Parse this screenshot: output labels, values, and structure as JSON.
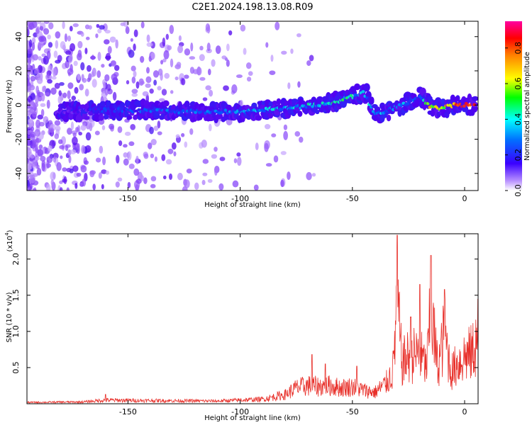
{
  "figure_title": "C2E1.2024.198.13.08.R09",
  "colors": {
    "snr_line": "#e8302a",
    "band_low": "#7a12f0",
    "band_mid": "#00e0e0",
    "band_high": "#e8102a",
    "scatter": "#c9a6f4"
  },
  "chart_data": [
    {
      "type": "heatmap",
      "title": "",
      "xlabel": "Height of straight line (km)",
      "ylabel": "Frequency (Hz)",
      "xlim": [
        -195,
        6
      ],
      "ylim": [
        -50,
        49
      ],
      "xticks": [
        -150,
        -100,
        -50,
        0
      ],
      "xtick_labels": [
        "-150",
        "-100",
        "-50",
        "0"
      ],
      "yticks": [
        -40,
        -20,
        0,
        20,
        40
      ],
      "ytick_labels": [
        "-40",
        "-20",
        "0",
        "20",
        "40"
      ],
      "colorbar": {
        "label": "Normalized spectral amplitude",
        "range": [
          0,
          0.95
        ],
        "ticks": [
          0,
          0.2,
          0.4,
          0.6,
          0.8
        ],
        "tick_labels": [
          "0.0",
          "0.2",
          "0.4",
          "0.6",
          "0.8"
        ]
      },
      "ridge": {
        "description_points_height_km": [
          -180,
          -160,
          -140,
          -120,
          -100,
          -80,
          -60,
          -50,
          -45,
          -40,
          -35,
          -25,
          -20,
          -15,
          -10,
          -5,
          0,
          5
        ],
        "frequency_hz": [
          -4,
          -3,
          -3,
          -4,
          -4,
          -2,
          1,
          5,
          8,
          -6,
          -4,
          2,
          5,
          -1,
          -2,
          0,
          0,
          0
        ],
        "amplitude": [
          0.2,
          0.3,
          0.35,
          0.35,
          0.4,
          0.45,
          0.5,
          0.5,
          0.4,
          0.45,
          0.4,
          0.4,
          0.35,
          0.75,
          0.6,
          0.9,
          0.95,
          0.95
        ]
      }
    },
    {
      "type": "line",
      "title": "",
      "xlabel": "Height of straight line (km)",
      "ylabel": "SNR (10 * v/v)",
      "y_multiplier": "(x10",
      "y_multiplier_exp": "4",
      "y_multiplier_close": ")",
      "xlim": [
        -195,
        6
      ],
      "ylim": [
        0,
        2.35
      ],
      "xticks": [
        -150,
        -100,
        -50,
        0
      ],
      "xtick_labels": [
        "-150",
        "-100",
        "-50",
        "0"
      ],
      "yticks": [
        0.5,
        1.0,
        1.5,
        2.0
      ],
      "ytick_labels": [
        "0.5",
        "1.0",
        "1.5",
        "2.0"
      ],
      "series": [
        {
          "envelope_x": [
            -195,
            -170,
            -160,
            -140,
            -110,
            -90,
            -80,
            -75,
            -70,
            -65,
            -60,
            -55,
            -50,
            -45,
            -40,
            -35,
            -32,
            -30,
            -28,
            -25,
            -20,
            -17,
            -15,
            -12,
            -9,
            -6,
            -3,
            0,
            3,
            6
          ],
          "envelope_y": [
            0.03,
            0.04,
            0.08,
            0.07,
            0.06,
            0.1,
            0.2,
            0.35,
            0.4,
            0.38,
            0.4,
            0.35,
            0.38,
            0.3,
            0.25,
            0.45,
            0.7,
            2.3,
            0.9,
            1.05,
            1.1,
            0.8,
            2.05,
            0.8,
            1.55,
            0.7,
            0.9,
            1.05,
            1.1,
            1.45
          ],
          "spikes": [
            [
              -160,
              0.13
            ],
            [
              -68,
              0.68
            ],
            [
              -62,
              0.55
            ],
            [
              -48,
              0.52
            ],
            [
              -30,
              2.33
            ],
            [
              -24,
              1.2
            ],
            [
              -20,
              1.65
            ],
            [
              -15,
              2.05
            ],
            [
              -9,
              1.58
            ],
            [
              6,
              1.45
            ]
          ]
        }
      ]
    }
  ]
}
